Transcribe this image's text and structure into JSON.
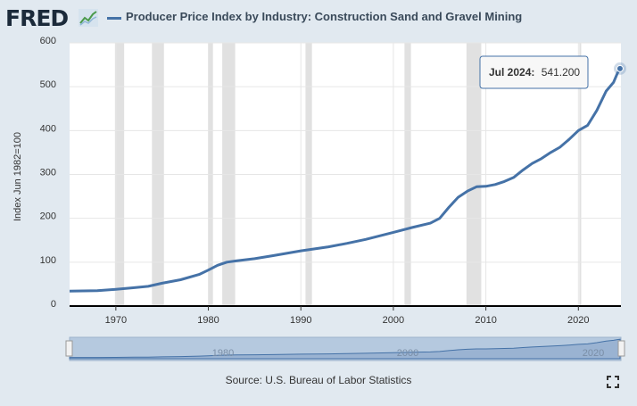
{
  "logo": {
    "text": "FRED",
    "icon": "line-chart-icon"
  },
  "title": "Producer Price Index by Industry: Construction Sand and Gravel Mining",
  "ylabel": "Index Jun 1982=100",
  "source": "Source: U.S. Bureau of Labor Statistics",
  "tooltip": {
    "date": "Jul 2024:",
    "value": "541.200"
  },
  "navigator": {
    "ticks": [
      "1980",
      "2000",
      "2020"
    ]
  },
  "colors": {
    "line": "#4572a7",
    "recession": "#e1e1e1",
    "background": "#e1e9f0"
  },
  "chart_data": {
    "type": "line",
    "title": "Producer Price Index by Industry: Construction Sand and Gravel Mining",
    "xlabel": "",
    "ylabel": "Index Jun 1982=100",
    "ylim": [
      0,
      600
    ],
    "xlim": [
      1965,
      2024.6
    ],
    "yticks": [
      0,
      100,
      200,
      300,
      400,
      500,
      600
    ],
    "xticks": [
      1970,
      1980,
      1990,
      2000,
      2010,
      2020
    ],
    "grid": true,
    "recessions": [
      [
        1969.9,
        1970.9
      ],
      [
        1973.9,
        1975.2
      ],
      [
        1980.0,
        1980.5
      ],
      [
        1981.5,
        1982.9
      ],
      [
        1990.5,
        1991.2
      ],
      [
        2001.2,
        2001.9
      ],
      [
        2007.9,
        2009.5
      ],
      [
        2020.1,
        2020.3
      ]
    ],
    "series": [
      {
        "name": "Producer Price Index by Industry: Construction Sand and Gravel Mining",
        "x": [
          1965,
          1968,
          1970,
          1972,
          1973.5,
          1975,
          1977,
          1979,
          1980,
          1981,
          1982,
          1983,
          1985,
          1987,
          1990,
          1993,
          1995,
          1997,
          2000,
          2002,
          2004,
          2005,
          2006,
          2007,
          2008,
          2009,
          2010,
          2011,
          2012,
          2013,
          2014,
          2015,
          2016,
          2017,
          2018,
          2019,
          2020,
          2021,
          2022,
          2023,
          2023.8,
          2024.2,
          2024.5
        ],
        "y": [
          34,
          35,
          38,
          42,
          45,
          52,
          60,
          72,
          82,
          93,
          100,
          103,
          108,
          115,
          126,
          135,
          143,
          152,
          168,
          179,
          189,
          200,
          225,
          248,
          262,
          272,
          273,
          277,
          284,
          293,
          310,
          325,
          336,
          350,
          362,
          380,
          400,
          412,
          446,
          490,
          510,
          530,
          541.2
        ]
      }
    ]
  }
}
